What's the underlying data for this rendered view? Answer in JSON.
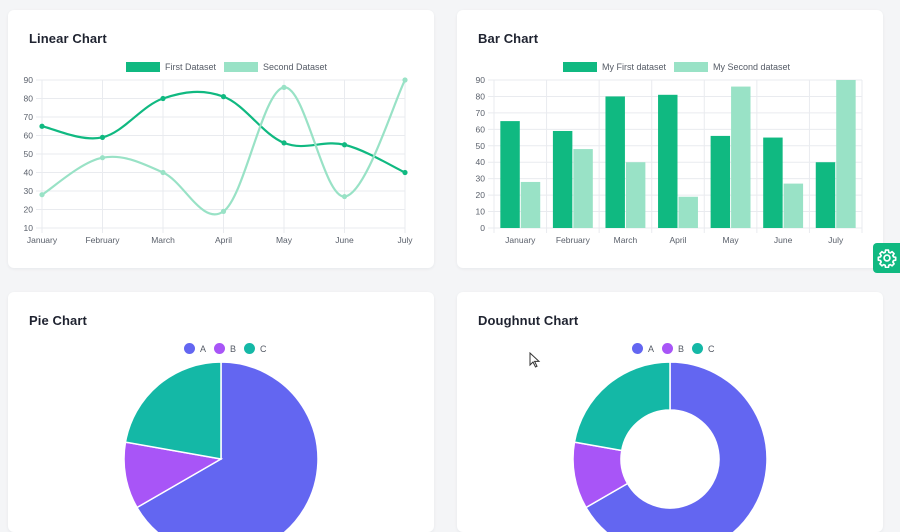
{
  "colors": {
    "green": "#10b981",
    "light_green": "#99e2c6",
    "indigo": "#6366f1",
    "purple": "#a855f7",
    "teal": "#14b8a6",
    "grid": "#e9ebef",
    "tick": "#5a606b"
  },
  "cards": {
    "linear_title": "Linear Chart",
    "bar_title": "Bar Chart",
    "pie_title": "Pie Chart",
    "doughnut_title": "Doughnut Chart"
  },
  "settings": {
    "icon": "gear-icon"
  },
  "chart_data": [
    {
      "id": "linear",
      "type": "line",
      "title": "Linear Chart",
      "categories": [
        "January",
        "February",
        "March",
        "April",
        "May",
        "June",
        "July"
      ],
      "series": [
        {
          "name": "First Dataset",
          "values": [
            65,
            59,
            80,
            81,
            56,
            55,
            40
          ]
        },
        {
          "name": "Second Dataset",
          "values": [
            28,
            48,
            40,
            19,
            86,
            27,
            90
          ]
        }
      ],
      "ylim": [
        10,
        90
      ],
      "yticks": [
        10,
        20,
        30,
        40,
        50,
        60,
        70,
        80,
        90
      ],
      "grid": true,
      "legend": "top-center"
    },
    {
      "id": "bar",
      "type": "bar",
      "title": "Bar Chart",
      "categories": [
        "January",
        "February",
        "March",
        "April",
        "May",
        "June",
        "July"
      ],
      "series": [
        {
          "name": "My First dataset",
          "values": [
            65,
            59,
            80,
            81,
            56,
            55,
            40
          ]
        },
        {
          "name": "My Second dataset",
          "values": [
            28,
            48,
            40,
            19,
            86,
            27,
            90
          ]
        }
      ],
      "ylim": [
        0,
        90
      ],
      "yticks": [
        0,
        10,
        20,
        30,
        40,
        50,
        60,
        70,
        80,
        90
      ],
      "grid": true,
      "legend": "top-center"
    },
    {
      "id": "pie",
      "type": "pie",
      "title": "Pie Chart",
      "labels": [
        "A",
        "B",
        "C"
      ],
      "values": [
        300,
        50,
        100
      ],
      "legend": "top-center"
    },
    {
      "id": "doughnut",
      "type": "pie",
      "title": "Doughnut Chart",
      "labels": [
        "A",
        "B",
        "C"
      ],
      "values": [
        300,
        50,
        100
      ],
      "legend": "top-center"
    }
  ]
}
